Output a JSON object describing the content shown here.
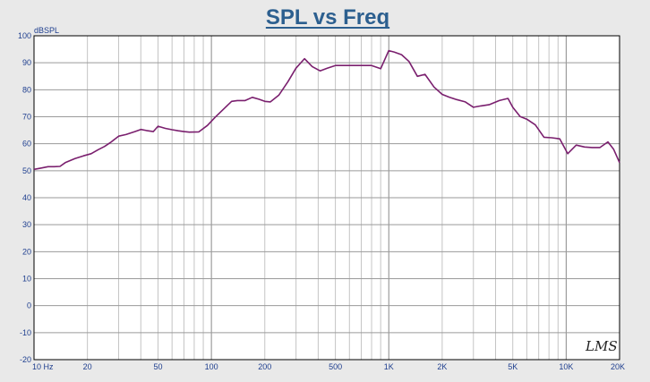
{
  "chart_data": {
    "type": "line",
    "title": "SPL vs Freq",
    "ylabel": "dBSPL",
    "xlabel": "",
    "x_scale": "log",
    "xlim": [
      10,
      20000
    ],
    "ylim": [
      -20,
      100
    ],
    "grid": true,
    "x_ticks": [
      {
        "value": 10,
        "label": "10 Hz"
      },
      {
        "value": 20,
        "label": "20"
      },
      {
        "value": 50,
        "label": "50"
      },
      {
        "value": 100,
        "label": "100"
      },
      {
        "value": 200,
        "label": "200"
      },
      {
        "value": 500,
        "label": "500"
      },
      {
        "value": 1000,
        "label": "1K"
      },
      {
        "value": 2000,
        "label": "2K"
      },
      {
        "value": 5000,
        "label": "5K"
      },
      {
        "value": 10000,
        "label": "10K"
      },
      {
        "value": 20000,
        "label": "20K"
      }
    ],
    "y_ticks": [
      100,
      90,
      80,
      70,
      60,
      50,
      40,
      30,
      20,
      10,
      0,
      -10,
      -20
    ],
    "series": [
      {
        "color": "#7a1f6e",
        "x": [
          10,
          11,
          12,
          13,
          14,
          15,
          17,
          19,
          21,
          23,
          25,
          27,
          30,
          33,
          37,
          40,
          43,
          47,
          50,
          55,
          60,
          65,
          70,
          75,
          85,
          95,
          105,
          120,
          130,
          140,
          155,
          170,
          185,
          200,
          215,
          240,
          270,
          300,
          335,
          370,
          410,
          450,
          500,
          560,
          600,
          700,
          800,
          900,
          1000,
          1070,
          1180,
          1300,
          1450,
          1600,
          1800,
          2000,
          2200,
          2400,
          2700,
          3000,
          3300,
          3700,
          4200,
          4700,
          5000,
          5500,
          6000,
          6700,
          7500,
          8300,
          9200,
          10200,
          11400,
          12700,
          14000,
          15500,
          17200,
          18500,
          20000
        ],
        "y": [
          50.5,
          51,
          51.5,
          51.5,
          51.6,
          53,
          54.5,
          55.5,
          56.3,
          57.8,
          59,
          60.5,
          62.8,
          63.4,
          64.5,
          65.3,
          64.9,
          64.5,
          66.5,
          65.7,
          65.2,
          64.8,
          64.5,
          64.3,
          64.4,
          66.8,
          69.8,
          73.5,
          75.7,
          76,
          76,
          77.2,
          76.5,
          75.7,
          75.5,
          78,
          83,
          88,
          91.5,
          88.6,
          87,
          88,
          89,
          89,
          89,
          89,
          89,
          87.8,
          94.5,
          94,
          93,
          90.5,
          85,
          85.7,
          81,
          78.3,
          77.2,
          76.4,
          75.5,
          73.5,
          74,
          74.5,
          76,
          76.8,
          73.5,
          70.1,
          69.1,
          67,
          62.4,
          62.2,
          61.8,
          56.3,
          59.5,
          58.8,
          58.6,
          58.6,
          60.7,
          58,
          53
        ]
      }
    ]
  },
  "watermark": "LMS"
}
